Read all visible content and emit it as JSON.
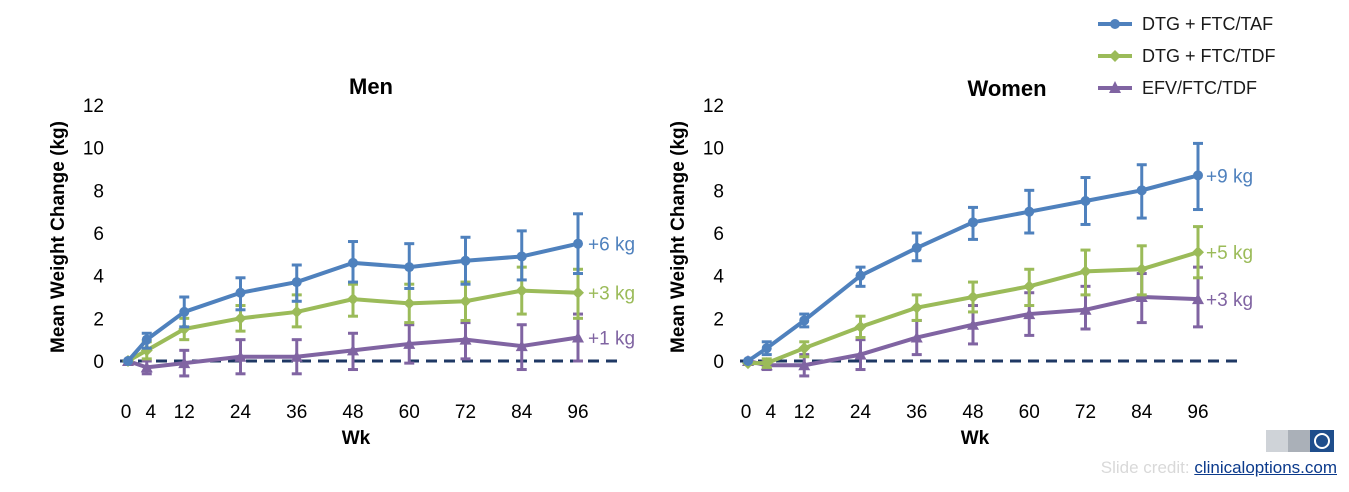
{
  "legend": {
    "series": [
      {
        "name": "DTG + FTC/TAF",
        "color": "#4f81bd",
        "marker": "circle"
      },
      {
        "name": "DTG + FTC/TDF",
        "color": "#9bbb59",
        "marker": "diamond"
      },
      {
        "name": "EFV/FTC/TDF",
        "color": "#8064a2",
        "marker": "triangle"
      }
    ]
  },
  "chart_data": [
    {
      "type": "line",
      "title": "Men",
      "xlabel": "Wk",
      "ylabel": "Mean Weight Change (kg)",
      "x": [
        0,
        4,
        12,
        24,
        36,
        48,
        60,
        72,
        84,
        96
      ],
      "ylim": [
        0,
        12
      ],
      "yticks": [
        0,
        2,
        4,
        6,
        8,
        10,
        12
      ],
      "reference_line": 0,
      "series": [
        {
          "name": "DTG + FTC/TAF",
          "values": [
            0,
            1.0,
            2.3,
            3.2,
            3.7,
            4.6,
            4.4,
            4.7,
            4.9,
            5.5
          ],
          "err_low": [
            0,
            0.6,
            1.6,
            2.4,
            2.8,
            3.7,
            3.4,
            3.6,
            3.8,
            4.1
          ],
          "err_high": [
            0,
            1.3,
            3.0,
            3.9,
            4.5,
            5.6,
            5.5,
            5.8,
            6.1,
            6.9
          ],
          "end_label": "+6 kg"
        },
        {
          "name": "DTG + FTC/TDF",
          "values": [
            0,
            0.5,
            1.5,
            2.0,
            2.3,
            2.9,
            2.7,
            2.8,
            3.3,
            3.2
          ],
          "err_low": [
            0,
            0.1,
            1.0,
            1.4,
            1.6,
            2.1,
            1.8,
            1.9,
            2.2,
            2.0
          ],
          "err_high": [
            0,
            0.9,
            2.0,
            2.6,
            3.1,
            3.6,
            3.6,
            3.7,
            4.4,
            4.3
          ],
          "end_label": "+3 kg"
        },
        {
          "name": "EFV/FTC/TDF",
          "values": [
            0,
            -0.3,
            -0.1,
            0.2,
            0.2,
            0.5,
            0.8,
            1.0,
            0.7,
            1.1
          ],
          "err_low": [
            0,
            -0.6,
            -0.7,
            -0.6,
            -0.6,
            -0.4,
            -0.1,
            0.1,
            -0.4,
            0.0
          ],
          "err_high": [
            0,
            0.0,
            0.5,
            1.0,
            1.0,
            1.3,
            1.7,
            1.8,
            1.7,
            2.2
          ],
          "end_label": "+1 kg"
        }
      ]
    },
    {
      "type": "line",
      "title": "Women",
      "xlabel": "Wk",
      "ylabel": "Mean Weight Change (kg)",
      "x": [
        0,
        4,
        12,
        24,
        36,
        48,
        60,
        72,
        84,
        96
      ],
      "ylim": [
        0,
        12
      ],
      "yticks": [
        0,
        2,
        4,
        6,
        8,
        10,
        12
      ],
      "reference_line": 0,
      "series": [
        {
          "name": "DTG + FTC/TAF",
          "values": [
            0,
            0.6,
            1.9,
            4.0,
            5.3,
            6.5,
            7.0,
            7.5,
            8.0,
            8.7
          ],
          "err_low": [
            0,
            0.3,
            1.6,
            3.5,
            4.7,
            5.7,
            6.0,
            6.4,
            6.7,
            7.1
          ],
          "err_high": [
            0,
            0.9,
            2.2,
            4.4,
            6.0,
            7.2,
            8.0,
            8.6,
            9.2,
            10.2
          ],
          "end_label": "+9 kg"
        },
        {
          "name": "DTG + FTC/TDF",
          "values": [
            -0.1,
            -0.1,
            0.6,
            1.6,
            2.5,
            3.0,
            3.5,
            4.2,
            4.3,
            5.1
          ],
          "err_low": [
            -0.1,
            -0.3,
            0.2,
            1.1,
            1.9,
            2.3,
            2.6,
            3.1,
            3.1,
            3.9
          ],
          "err_high": [
            -0.1,
            0.1,
            0.9,
            2.1,
            3.1,
            3.7,
            4.3,
            5.2,
            5.4,
            6.3
          ],
          "end_label": "+5 kg"
        },
        {
          "name": "EFV/FTC/TDF",
          "values": [
            0,
            -0.2,
            -0.2,
            0.3,
            1.1,
            1.7,
            2.2,
            2.4,
            3.0,
            2.9
          ],
          "err_low": [
            0,
            -0.4,
            -0.7,
            -0.4,
            0.3,
            0.8,
            1.2,
            1.5,
            1.8,
            1.6
          ],
          "err_high": [
            0,
            0.0,
            0.3,
            1.0,
            1.9,
            2.6,
            3.2,
            3.5,
            4.1,
            4.4
          ],
          "end_label": "+3 kg"
        }
      ]
    }
  ],
  "footer": {
    "credit_prefix": "Slide credit: ",
    "credit_link": "clinicaloptions.com"
  }
}
